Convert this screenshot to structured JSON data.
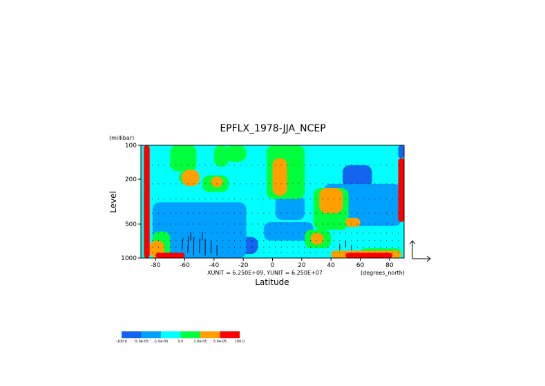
{
  "chart_data": {
    "type": "heatmap",
    "title": "EPFLX_1978-JJA_NCEP",
    "xlabel": "Latitude",
    "xunits": "(degrees_north)",
    "ylabel": "Level",
    "yunits": "(millibar)",
    "xlim": [
      -90,
      90
    ],
    "ylim": [
      1000,
      100
    ],
    "yscale": "log",
    "x_ticks": [
      -80,
      -60,
      -40,
      -20,
      0,
      20,
      40,
      60,
      80
    ],
    "y_ticks": [
      100,
      200,
      500,
      1000
    ],
    "vector_units": "XUNIT = 6.250E+09, YUNIT = 6.250E+07",
    "colorbar": {
      "levels": [
        "-100.0",
        "-5.0e-05",
        "-1.0e-05",
        "0.0",
        "1.0e-05",
        "5.0e-05",
        "100.0"
      ],
      "colors": [
        "#1464f0",
        "#00a0ff",
        "#00ffff",
        "#00ff3c",
        "#ffa000",
        "#ff0000"
      ]
    },
    "regions": [
      {
        "level": 2,
        "lat": [
          -90,
          90
        ],
        "p": [
          100,
          1000
        ]
      },
      {
        "level": 0,
        "lat": [
          -80,
          -22
        ],
        "p": [
          350,
          620
        ]
      },
      {
        "level": 0,
        "lat": [
          -78,
          -10
        ],
        "p": [
          650,
          920
        ]
      },
      {
        "level": 0,
        "lat": [
          38,
          90
        ],
        "p": [
          240,
          460
        ]
      },
      {
        "level": 0,
        "lat": [
          48,
          68
        ],
        "p": [
          150,
          240
        ]
      },
      {
        "level": 1,
        "lat": [
          -82,
          -18
        ],
        "p": [
          320,
          1000
        ]
      },
      {
        "level": 1,
        "lat": [
          35,
          88
        ],
        "p": [
          220,
          520
        ]
      },
      {
        "level": 1,
        "lat": [
          -6,
          28
        ],
        "p": [
          480,
          700
        ]
      },
      {
        "level": 1,
        "lat": [
          2,
          22
        ],
        "p": [
          280,
          460
        ]
      },
      {
        "level": 3,
        "lat": [
          -70,
          -52
        ],
        "p": [
          100,
          170
        ]
      },
      {
        "level": 3,
        "lat": [
          -64,
          -52
        ],
        "p": [
          170,
          220
        ]
      },
      {
        "level": 3,
        "lat": [
          -40,
          -30
        ],
        "p": [
          100,
          155
        ]
      },
      {
        "level": 3,
        "lat": [
          -32,
          -18
        ],
        "p": [
          100,
          140
        ]
      },
      {
        "level": 3,
        "lat": [
          -48,
          -30
        ],
        "p": [
          185,
          260
        ]
      },
      {
        "level": 3,
        "lat": [
          -4,
          22
        ],
        "p": [
          100,
          300
        ]
      },
      {
        "level": 3,
        "lat": [
          28,
          52
        ],
        "p": [
          240,
          560
        ]
      },
      {
        "level": 3,
        "lat": [
          22,
          40
        ],
        "p": [
          560,
          820
        ]
      },
      {
        "level": 3,
        "lat": [
          -82,
          -70
        ],
        "p": [
          580,
          1000
        ]
      },
      {
        "level": 3,
        "lat": [
          60,
          88
        ],
        "p": [
          820,
          1000
        ]
      },
      {
        "level": 4,
        "lat": [
          -62,
          -50
        ],
        "p": [
          165,
          230
        ]
      },
      {
        "level": 4,
        "lat": [
          -42,
          -34
        ],
        "p": [
          190,
          235
        ]
      },
      {
        "level": 4,
        "lat": [
          0,
          10
        ],
        "p": [
          130,
          280
        ]
      },
      {
        "level": 4,
        "lat": [
          32,
          48
        ],
        "p": [
          240,
          400
        ]
      },
      {
        "level": 4,
        "lat": [
          50,
          60
        ],
        "p": [
          440,
          530
        ]
      },
      {
        "level": 4,
        "lat": [
          26,
          35
        ],
        "p": [
          600,
          760
        ]
      },
      {
        "level": 4,
        "lat": [
          -84,
          -74
        ],
        "p": [
          700,
          1000
        ]
      },
      {
        "level": 4,
        "lat": [
          40,
          88
        ],
        "p": [
          860,
          1000
        ]
      },
      {
        "level": 5,
        "lat": [
          -88,
          -84
        ],
        "p": [
          100,
          1000
        ]
      },
      {
        "level": 5,
        "lat": [
          -80,
          -60
        ],
        "p": [
          900,
          1000
        ]
      },
      {
        "level": 5,
        "lat": [
          50,
          82
        ],
        "p": [
          900,
          1000
        ]
      },
      {
        "level": 5,
        "lat": [
          86,
          90
        ],
        "p": [
          130,
          480
        ]
      },
      {
        "level": 0,
        "lat": [
          86,
          90
        ],
        "p": [
          100,
          130
        ]
      }
    ],
    "vectors": [
      {
        "lat": -62,
        "p": 850,
        "u": 0.3,
        "v": 3.0
      },
      {
        "lat": -58,
        "p": 900,
        "u": 0.2,
        "v": 4.0
      },
      {
        "lat": -54,
        "p": 950,
        "u": 0.1,
        "v": 4.5
      },
      {
        "lat": -50,
        "p": 900,
        "u": 0.1,
        "v": 3.5
      },
      {
        "lat": -46,
        "p": 950,
        "u": 0.0,
        "v": 4.0
      },
      {
        "lat": -42,
        "p": 900,
        "u": 0.0,
        "v": 3.0
      },
      {
        "lat": -38,
        "p": 950,
        "u": 0.0,
        "v": 2.5
      },
      {
        "lat": -56,
        "p": 700,
        "u": 0.0,
        "v": 2.0
      },
      {
        "lat": -48,
        "p": 700,
        "u": 0.0,
        "v": 2.0
      },
      {
        "lat": 46,
        "p": 850,
        "u": 0.0,
        "v": 1.5
      },
      {
        "lat": 50,
        "p": 800,
        "u": 0.0,
        "v": 1.5
      },
      {
        "lat": 54,
        "p": 850,
        "u": 0.0,
        "v": 1.3
      }
    ]
  }
}
